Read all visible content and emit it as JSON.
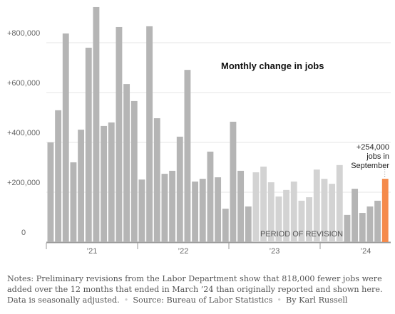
{
  "chart_data": {
    "type": "bar",
    "title": "Monthly change in jobs",
    "annotation": "PERIOD OF REVISION",
    "callout": [
      "+254,000",
      "jobs in",
      "September"
    ],
    "year_labels": [
      "’21",
      "’22",
      "’23",
      "’24"
    ],
    "values": [
      400000,
      529000,
      837000,
      320000,
      451000,
      780000,
      943000,
      466000,
      480000,
      863000,
      634000,
      566000,
      251000,
      866000,
      497000,
      274000,
      286000,
      423000,
      691000,
      243000,
      254000,
      363000,
      260000,
      134000,
      483000,
      286000,
      143000,
      280000,
      303000,
      240000,
      183000,
      209000,
      243000,
      166000,
      180000,
      291000,
      254000,
      234000,
      309000,
      109000,
      214000,
      117000,
      143000,
      166000,
      254000
    ],
    "colors": [
      "#b5b5b5",
      "#b5b5b5",
      "#b5b5b5",
      "#b5b5b5",
      "#b5b5b5",
      "#b5b5b5",
      "#b5b5b5",
      "#b5b5b5",
      "#b5b5b5",
      "#b5b5b5",
      "#b5b5b5",
      "#b5b5b5",
      "#b5b5b5",
      "#b5b5b5",
      "#b5b5b5",
      "#b5b5b5",
      "#b5b5b5",
      "#b5b5b5",
      "#b5b5b5",
      "#b5b5b5",
      "#b5b5b5",
      "#b5b5b5",
      "#b5b5b5",
      "#b5b5b5",
      "#b5b5b5",
      "#b5b5b5",
      "#b5b5b5",
      "#d3d3d3",
      "#d3d3d3",
      "#d3d3d3",
      "#d3d3d3",
      "#d3d3d3",
      "#d3d3d3",
      "#d3d3d3",
      "#d3d3d3",
      "#d3d3d3",
      "#d3d3d3",
      "#d3d3d3",
      "#d3d3d3",
      "#b5b5b5",
      "#b5b5b5",
      "#b5b5b5",
      "#b5b5b5",
      "#b5b5b5",
      "#f58a4b"
    ],
    "ylim": [
      0,
      971428
    ],
    "yticks": [
      0,
      {
        "value": 200000,
        "label": "+200,000"
      },
      {
        "value": 400000,
        "label": "+400,000"
      },
      {
        "value": 600000,
        "label": "+600,000"
      },
      {
        "value": 800000,
        "label": "+800,000"
      }
    ],
    "grid": true
  },
  "notes": {
    "text": "Notes: Preliminary revisions from the Labor Department show that 818,000 fewer jobs were added over the 12 months that ended in March ’24 than originally reported and shown here. Data is seasonally adjusted.",
    "source": "Source: Bureau of Labor Statistics",
    "byline": "By Karl Russell"
  }
}
